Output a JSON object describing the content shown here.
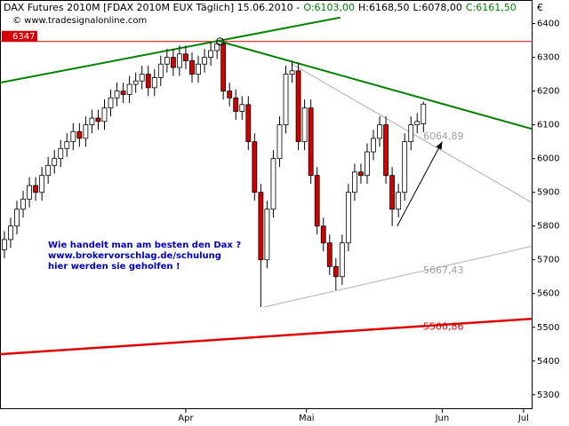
{
  "chart_data": {
    "type": "candlestick",
    "title": "DAX Futures 2010M [FDAX 2010M EUX  Täglich] 15.06.2010 -",
    "ohlc_labels": [
      "O:6103,00",
      "H:6168,50",
      "L:6078,00",
      "C:6161,50"
    ],
    "ohlc_colors": [
      "#008000",
      "#000000",
      "#000000",
      "#008000"
    ],
    "copyright": "© www.tradesignalonline.com",
    "currency": "€",
    "annotation": [
      "Wie handelt man am besten den Dax ?",
      "www.brokervorschlag.de/schulung",
      "hier werden sie geholfen !"
    ],
    "xlim": [
      -0.7,
      84.3
    ],
    "xticks": [
      {
        "value": 29,
        "label": "Apr"
      },
      {
        "value": 48.3,
        "label": "Mai"
      },
      {
        "value": 70,
        "label": "Jun"
      },
      {
        "value": 83,
        "label": "Jul"
      }
    ],
    "ylim": [
      5260,
      6470
    ],
    "yticks": [
      5300,
      5400,
      5500,
      5600,
      5700,
      5800,
      5900,
      6000,
      6100,
      6200,
      6300,
      6400
    ],
    "up_color": "#ffffff",
    "down_color": "#d40000",
    "open": [
      5730,
      5760,
      5800,
      5850,
      5880,
      5920,
      5900,
      5950,
      5980,
      6000,
      6030,
      6050,
      6080,
      6060,
      6100,
      6120,
      6110,
      6150,
      6180,
      6200,
      6190,
      6220,
      6230,
      6250,
      6210,
      6240,
      6280,
      6300,
      6270,
      6310,
      6290,
      6250,
      6280,
      6300,
      6320,
      6340,
      6200,
      6180,
      6140,
      6160,
      6050,
      5900,
      5700,
      5850,
      6000,
      6100,
      6250,
      6260,
      6050,
      6150,
      5950,
      5800,
      5750,
      5680,
      5650,
      5750,
      5900,
      5960,
      5950,
      6020,
      6060,
      6100,
      5950,
      5850,
      5900,
      6050,
      6100,
      6103
    ],
    "high": [
      5785,
      5825,
      5875,
      5905,
      5945,
      5945,
      5975,
      6005,
      6025,
      6055,
      6075,
      6105,
      6105,
      6125,
      6145,
      6145,
      6175,
      6205,
      6225,
      6225,
      6245,
      6255,
      6275,
      6275,
      6265,
      6305,
      6325,
      6325,
      6335,
      6335,
      6315,
      6305,
      6325,
      6345,
      6350,
      6345,
      6225,
      6205,
      6185,
      6185,
      6075,
      5925,
      5875,
      6025,
      6125,
      6275,
      6290,
      6285,
      6175,
      6175,
      5975,
      5825,
      5775,
      5705,
      5775,
      5925,
      5985,
      5985,
      6045,
      6085,
      6125,
      6125,
      5975,
      5925,
      6075,
      6125,
      6135,
      6168.5
    ],
    "low": [
      5705,
      5735,
      5775,
      5825,
      5855,
      5875,
      5875,
      5925,
      5955,
      5975,
      6005,
      6025,
      6035,
      6035,
      6075,
      6085,
      6085,
      6125,
      6155,
      6165,
      6165,
      6195,
      6205,
      6185,
      6185,
      6215,
      6255,
      6245,
      6245,
      6265,
      6225,
      6225,
      6255,
      6275,
      6295,
      6175,
      6155,
      6115,
      6115,
      6025,
      5875,
      5560,
      5675,
      5825,
      5975,
      6075,
      6225,
      6025,
      6025,
      5925,
      5775,
      5725,
      5655,
      5610,
      5625,
      5725,
      5875,
      5925,
      5925,
      5995,
      6035,
      5925,
      5800,
      5825,
      5875,
      6025,
      6075,
      6078
    ],
    "close": [
      5760,
      5800,
      5850,
      5880,
      5920,
      5900,
      5950,
      5980,
      6000,
      6030,
      6050,
      6080,
      6060,
      6100,
      6120,
      6110,
      6150,
      6180,
      6200,
      6190,
      6220,
      6230,
      6250,
      6210,
      6240,
      6280,
      6300,
      6270,
      6310,
      6290,
      6250,
      6280,
      6300,
      6320,
      6340,
      6200,
      6180,
      6140,
      6160,
      6050,
      5900,
      5700,
      5850,
      6000,
      6100,
      6250,
      6260,
      6050,
      6150,
      5950,
      5800,
      5750,
      5680,
      5650,
      5750,
      5900,
      5960,
      5950,
      6020,
      6060,
      6100,
      5950,
      5850,
      5900,
      6050,
      6100,
      6110,
      6161.5
    ],
    "hline": {
      "value": 6347,
      "color": "#d40000"
    },
    "trendlines": [
      {
        "points": [
          [
            -0.7,
            6225
          ],
          [
            53.7,
            6418
          ]
        ],
        "color": "#008000",
        "width": 2
      },
      {
        "points": [
          [
            34.5,
            6347
          ],
          [
            84.3,
            6088
          ]
        ],
        "color": "#008000",
        "width": 2
      },
      {
        "points": [
          [
            46,
            6280
          ],
          [
            84.3,
            5870
          ]
        ],
        "color": "#b0b0b0",
        "width": 1
      },
      {
        "points": [
          [
            41.5,
            5560
          ],
          [
            84.3,
            5740
          ]
        ],
        "color": "#b0b0b0",
        "width": 1
      },
      {
        "points": [
          [
            -0.7,
            5420
          ],
          [
            84.3,
            5525
          ]
        ],
        "color": "#e00000",
        "width": 2.5
      },
      {
        "points": [
          [
            62.8,
            5800
          ],
          [
            70,
            6050
          ]
        ],
        "color": "#000000",
        "width": 1
      }
    ],
    "level_labels": [
      {
        "value": 6064.89,
        "label": "6064,89",
        "color": "#a0a0a0"
      },
      {
        "value": 5667.43,
        "label": "5667,43",
        "color": "#a0a0a0"
      },
      {
        "value": 5500.86,
        "label": "5500,86",
        "color": "#d40000"
      }
    ]
  }
}
